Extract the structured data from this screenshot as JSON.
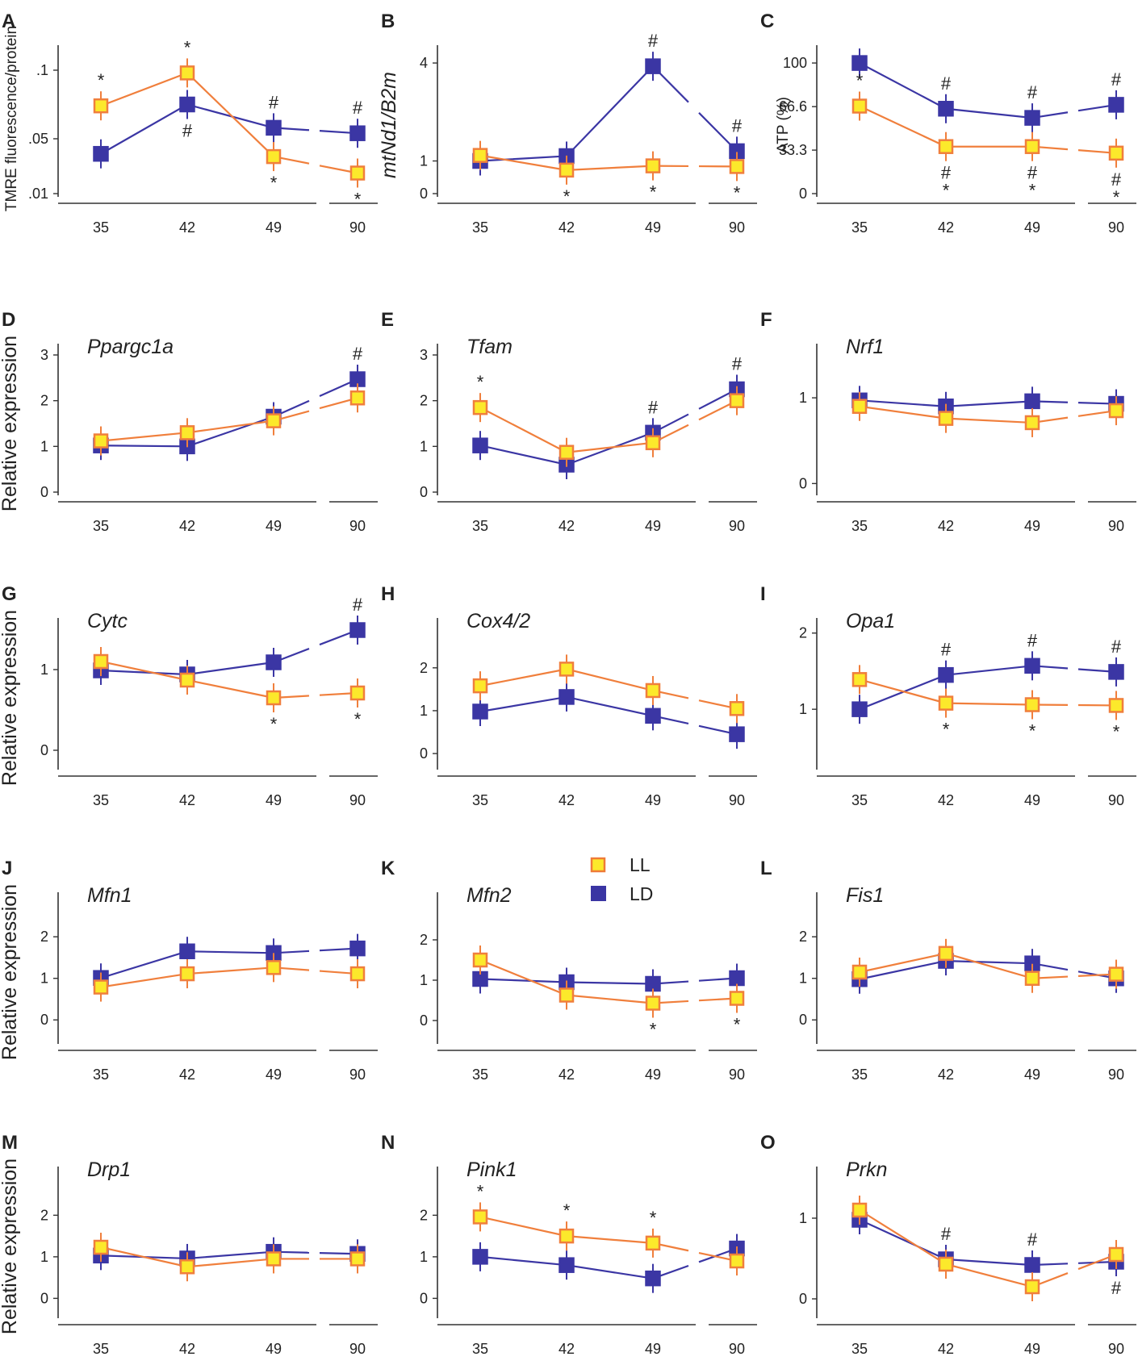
{
  "legend": {
    "items": [
      {
        "label": "LL",
        "fill": "#FCE92B",
        "stroke": "#EF7B37"
      },
      {
        "label": "LD",
        "fill": "#3A35A3",
        "stroke": "#3A35A3"
      }
    ]
  },
  "colors": {
    "LL_line": "#F07F3C",
    "LL_fill": "#FCE92B",
    "LD": "#3B36A4",
    "text": "#222222"
  },
  "chart_data": [
    {
      "panel": "A",
      "type": "line",
      "title": "",
      "xlabel": "",
      "ylabel": "TMRE fluorescence/protein",
      "categories": [
        "35",
        "42",
        "49",
        "90"
      ],
      "yticks": [
        ".01",
        ".05",
        ".1"
      ],
      "ylim": [
        0.01,
        0.11
      ],
      "series": [
        {
          "name": "LL",
          "values": [
            0.074,
            0.098,
            0.037,
            0.025
          ]
        },
        {
          "name": "LD",
          "values": [
            0.039,
            0.075,
            0.058,
            0.054
          ]
        }
      ],
      "annotations": [
        {
          "x": "35",
          "series": "LL",
          "pos": "above",
          "text": "*"
        },
        {
          "x": "42",
          "series": "LL",
          "pos": "above",
          "text": "*"
        },
        {
          "x": "49",
          "series": "LL",
          "pos": "below",
          "text": "*"
        },
        {
          "x": "90",
          "series": "LL",
          "pos": "below",
          "text": "*"
        },
        {
          "x": "42",
          "series": "LD",
          "pos": "below",
          "text": "#"
        },
        {
          "x": "49",
          "series": "LD",
          "pos": "above",
          "text": "#"
        },
        {
          "x": "90",
          "series": "LD",
          "pos": "above",
          "text": "#"
        }
      ]
    },
    {
      "panel": "B",
      "type": "line",
      "title": "",
      "xlabel": "",
      "ylabel": "mtNd1/B2m",
      "categories": [
        "35",
        "42",
        "49",
        "90"
      ],
      "yticks": [
        "0",
        "1",
        "4"
      ],
      "ylim": [
        0,
        4.2
      ],
      "series": [
        {
          "name": "LL",
          "values": [
            1.17,
            0.72,
            0.85,
            0.83
          ]
        },
        {
          "name": "LD",
          "values": [
            1.0,
            1.15,
            3.9,
            1.3
          ]
        }
      ],
      "annotations": [
        {
          "x": "42",
          "series": "LL",
          "pos": "below",
          "text": "*"
        },
        {
          "x": "49",
          "series": "LL",
          "pos": "below",
          "text": "*"
        },
        {
          "x": "90",
          "series": "LL",
          "pos": "below",
          "text": "*"
        },
        {
          "x": "49",
          "series": "LD",
          "pos": "above",
          "text": "#"
        },
        {
          "x": "90",
          "series": "LD",
          "pos": "above",
          "text": "#"
        }
      ]
    },
    {
      "panel": "C",
      "type": "line",
      "title": "",
      "xlabel": "",
      "ylabel": "ATP (%)",
      "categories": [
        "35",
        "42",
        "49",
        "90"
      ],
      "yticks": [
        "0",
        "33.3",
        "66.6",
        "100"
      ],
      "ylim": [
        0,
        105
      ],
      "series": [
        {
          "name": "LL",
          "values": [
            67,
            36,
            36,
            31
          ]
        },
        {
          "name": "LD",
          "values": [
            100,
            65,
            58,
            68
          ]
        }
      ],
      "annotations": [
        {
          "x": "35",
          "series": "LL",
          "pos": "above",
          "text": "*"
        },
        {
          "x": "42",
          "series": "LL",
          "pos": "below",
          "text": "#\n*"
        },
        {
          "x": "49",
          "series": "LL",
          "pos": "below",
          "text": "#\n*"
        },
        {
          "x": "90",
          "series": "LL",
          "pos": "below",
          "text": "#\n*"
        },
        {
          "x": "42",
          "series": "LD",
          "pos": "above",
          "text": "#"
        },
        {
          "x": "49",
          "series": "LD",
          "pos": "above",
          "text": "#"
        },
        {
          "x": "90",
          "series": "LD",
          "pos": "above",
          "text": "#"
        }
      ]
    },
    {
      "panel": "D",
      "type": "line",
      "title": "Ppargc1a",
      "xlabel": "",
      "ylabel": "Relative expression",
      "categories": [
        "35",
        "42",
        "49",
        "90"
      ],
      "yticks": [
        "0",
        "1",
        "2",
        "3"
      ],
      "ylim": [
        0,
        3
      ],
      "series": [
        {
          "name": "LL",
          "values": [
            1.12,
            1.3,
            1.56,
            2.06
          ]
        },
        {
          "name": "LD",
          "values": [
            1.02,
            1.0,
            1.65,
            2.47
          ]
        }
      ],
      "annotations": [
        {
          "x": "90",
          "series": "LD",
          "pos": "above",
          "text": "#"
        }
      ]
    },
    {
      "panel": "E",
      "type": "line",
      "title": "Tfam",
      "xlabel": "",
      "ylabel": "",
      "categories": [
        "35",
        "42",
        "49",
        "90"
      ],
      "yticks": [
        "0",
        "1",
        "2",
        "3"
      ],
      "ylim": [
        0,
        3
      ],
      "series": [
        {
          "name": "LL",
          "values": [
            1.85,
            0.87,
            1.08,
            2.0
          ]
        },
        {
          "name": "LD",
          "values": [
            1.02,
            0.6,
            1.3,
            2.25
          ]
        }
      ],
      "annotations": [
        {
          "x": "35",
          "series": "LL",
          "pos": "above",
          "text": "*"
        },
        {
          "x": "49",
          "series": "LD",
          "pos": "above",
          "text": "#"
        },
        {
          "x": "90",
          "series": "LD",
          "pos": "above",
          "text": "#"
        }
      ]
    },
    {
      "panel": "F",
      "type": "line",
      "title": "Nrf1",
      "xlabel": "",
      "ylabel": "",
      "categories": [
        "35",
        "42",
        "49",
        "90"
      ],
      "yticks": [
        "0",
        "1"
      ],
      "ylim": [
        -0.1,
        1.5
      ],
      "series": [
        {
          "name": "LL",
          "values": [
            0.9,
            0.76,
            0.71,
            0.85
          ]
        },
        {
          "name": "LD",
          "values": [
            0.97,
            0.9,
            0.96,
            0.93
          ]
        }
      ],
      "annotations": []
    },
    {
      "panel": "G",
      "type": "line",
      "title": "Cytc",
      "xlabel": "",
      "ylabel": "Relative expression",
      "categories": [
        "35",
        "42",
        "49",
        "90"
      ],
      "yticks": [
        "0",
        "1"
      ],
      "ylim": [
        -0.2,
        1.5
      ],
      "series": [
        {
          "name": "LL",
          "values": [
            1.1,
            0.87,
            0.65,
            0.71
          ]
        },
        {
          "name": "LD",
          "values": [
            0.99,
            0.94,
            1.09,
            1.49
          ]
        }
      ],
      "annotations": [
        {
          "x": "49",
          "series": "LL",
          "pos": "below",
          "text": "*"
        },
        {
          "x": "90",
          "series": "LL",
          "pos": "below",
          "text": "*"
        },
        {
          "x": "90",
          "series": "LD",
          "pos": "above",
          "text": "#"
        }
      ]
    },
    {
      "panel": "H",
      "type": "line",
      "title": "Cox4/2",
      "xlabel": "",
      "ylabel": "",
      "categories": [
        "35",
        "42",
        "49",
        "90"
      ],
      "yticks": [
        "0",
        "1",
        "2"
      ],
      "ylim": [
        -0.3,
        2.9
      ],
      "series": [
        {
          "name": "LL",
          "values": [
            1.58,
            1.97,
            1.47,
            1.05
          ]
        },
        {
          "name": "LD",
          "values": [
            0.98,
            1.32,
            0.88,
            0.45
          ]
        }
      ],
      "annotations": []
    },
    {
      "panel": "I",
      "type": "line",
      "title": "Opa1",
      "xlabel": "",
      "ylabel": "",
      "categories": [
        "35",
        "42",
        "49",
        "90"
      ],
      "yticks": [
        "1",
        "2"
      ],
      "ylim": [
        0.25,
        2.05
      ],
      "series": [
        {
          "name": "LL",
          "values": [
            1.39,
            1.08,
            1.06,
            1.05
          ]
        },
        {
          "name": "LD",
          "values": [
            1.0,
            1.45,
            1.57,
            1.49
          ]
        }
      ],
      "annotations": [
        {
          "x": "42",
          "series": "LL",
          "pos": "below",
          "text": "*"
        },
        {
          "x": "49",
          "series": "LL",
          "pos": "below",
          "text": "*"
        },
        {
          "x": "90",
          "series": "LL",
          "pos": "below",
          "text": "*"
        },
        {
          "x": "42",
          "series": "LD",
          "pos": "above",
          "text": "#"
        },
        {
          "x": "49",
          "series": "LD",
          "pos": "above",
          "text": "#"
        },
        {
          "x": "90",
          "series": "LD",
          "pos": "above",
          "text": "#"
        }
      ]
    },
    {
      "panel": "J",
      "type": "line",
      "title": "Mfn1",
      "xlabel": "",
      "ylabel": "Relative expression",
      "categories": [
        "35",
        "42",
        "49",
        "90"
      ],
      "yticks": [
        "0",
        "1",
        "2"
      ],
      "ylim": [
        -0.5,
        2.8
      ],
      "series": [
        {
          "name": "LL",
          "values": [
            0.79,
            1.11,
            1.26,
            1.11
          ]
        },
        {
          "name": "LD",
          "values": [
            1.01,
            1.65,
            1.61,
            1.72
          ]
        }
      ],
      "annotations": []
    },
    {
      "panel": "K",
      "type": "line",
      "title": "Mfn2",
      "xlabel": "",
      "ylabel": "",
      "categories": [
        "35",
        "42",
        "49",
        "90"
      ],
      "yticks": [
        "0",
        "1",
        "2"
      ],
      "ylim": [
        -0.5,
        2.9
      ],
      "series": [
        {
          "name": "LL",
          "values": [
            1.5,
            0.63,
            0.43,
            0.55
          ]
        },
        {
          "name": "LD",
          "values": [
            1.03,
            0.95,
            0.91,
            1.05
          ]
        }
      ],
      "annotations": [
        {
          "x": "49",
          "series": "LL",
          "pos": "below",
          "text": "*"
        },
        {
          "x": "90",
          "series": "LL",
          "pos": "below",
          "text": "*"
        }
      ]
    },
    {
      "panel": "L",
      "type": "line",
      "title": "Fis1",
      "xlabel": "",
      "ylabel": "",
      "categories": [
        "35",
        "42",
        "49",
        "90"
      ],
      "yticks": [
        "0",
        "1",
        "2"
      ],
      "ylim": [
        -0.5,
        2.8
      ],
      "series": [
        {
          "name": "LL",
          "values": [
            1.15,
            1.6,
            1.0,
            1.1
          ]
        },
        {
          "name": "LD",
          "values": [
            0.98,
            1.42,
            1.36,
            1.0
          ]
        }
      ],
      "annotations": []
    },
    {
      "panel": "M",
      "type": "line",
      "title": "Drp1",
      "xlabel": "",
      "ylabel": "Relative expression",
      "categories": [
        "35",
        "42",
        "49",
        "90"
      ],
      "yticks": [
        "0",
        "1",
        "2"
      ],
      "ylim": [
        -0.4,
        2.9
      ],
      "series": [
        {
          "name": "LL",
          "values": [
            1.23,
            0.76,
            0.95,
            0.95
          ]
        },
        {
          "name": "LD",
          "values": [
            1.03,
            0.96,
            1.12,
            1.07
          ]
        }
      ],
      "annotations": []
    },
    {
      "panel": "N",
      "type": "line",
      "title": "Pink1",
      "xlabel": "",
      "ylabel": "",
      "categories": [
        "35",
        "42",
        "49",
        "90"
      ],
      "yticks": [
        "0",
        "1",
        "2"
      ],
      "ylim": [
        -0.4,
        2.9
      ],
      "series": [
        {
          "name": "LL",
          "values": [
            1.96,
            1.5,
            1.33,
            0.9
          ]
        },
        {
          "name": "LD",
          "values": [
            1.0,
            0.8,
            0.48,
            1.2
          ]
        }
      ],
      "annotations": [
        {
          "x": "35",
          "series": "LL",
          "pos": "above",
          "text": "*"
        },
        {
          "x": "42",
          "series": "LL",
          "pos": "above",
          "text": "*"
        },
        {
          "x": "49",
          "series": "LL",
          "pos": "above",
          "text": "*"
        }
      ]
    },
    {
      "panel": "O",
      "type": "line",
      "title": "Prkn",
      "xlabel": "",
      "ylabel": "",
      "categories": [
        "35",
        "42",
        "49",
        "90"
      ],
      "yticks": [
        "0",
        "1"
      ],
      "ylim": [
        -0.2,
        1.5
      ],
      "series": [
        {
          "name": "LL",
          "values": [
            1.1,
            0.43,
            0.15,
            0.55
          ]
        },
        {
          "name": "LD",
          "values": [
            0.98,
            0.49,
            0.42,
            0.46
          ]
        }
      ],
      "annotations": [
        {
          "x": "42",
          "series": "LD",
          "pos": "above",
          "text": "#"
        },
        {
          "x": "49",
          "series": "LD",
          "pos": "above",
          "text": "#"
        },
        {
          "x": "90",
          "series": "LD",
          "pos": "below",
          "text": "#"
        }
      ]
    }
  ]
}
